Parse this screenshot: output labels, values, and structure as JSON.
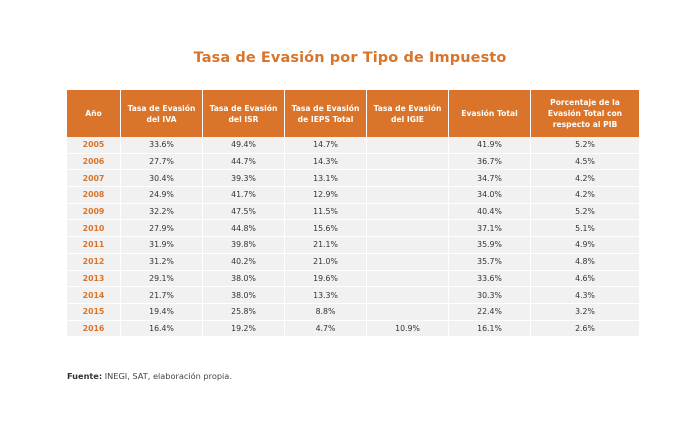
{
  "title": "Tasa de Evasión por Tipo de Impuesto",
  "table": {
    "headers": [
      "Año",
      "Tasa de Evasión del IVA",
      "Tasa de Evasión del ISR",
      "Tasa de Evasión de IEPS Total",
      "Tasa de Evasión del IGIE",
      "Evasión Total",
      "Porcentaje de la Evasión Total con respecto al PIB"
    ],
    "rows": [
      [
        "2005",
        "33.6%",
        "49.4%",
        "14.7%",
        "",
        "41.9%",
        "5.2%"
      ],
      [
        "2006",
        "27.7%",
        "44.7%",
        "14.3%",
        "",
        "36.7%",
        "4.5%"
      ],
      [
        "2007",
        "30.4%",
        "39.3%",
        "13.1%",
        "",
        "34.7%",
        "4.2%"
      ],
      [
        "2008",
        "24.9%",
        "41.7%",
        "12.9%",
        "",
        "34.0%",
        "4.2%"
      ],
      [
        "2009",
        "32.2%",
        "47.5%",
        "11.5%",
        "",
        "40.4%",
        "5.2%"
      ],
      [
        "2010",
        "27.9%",
        "44.8%",
        "15.6%",
        "",
        "37.1%",
        "5.1%"
      ],
      [
        "2011",
        "31.9%",
        "39.8%",
        "21.1%",
        "",
        "35.9%",
        "4.9%"
      ],
      [
        "2012",
        "31.2%",
        "40.2%",
        "21.0%",
        "",
        "35.7%",
        "4.8%"
      ],
      [
        "2013",
        "29.1%",
        "38.0%",
        "19.6%",
        "",
        "33.6%",
        "4.6%"
      ],
      [
        "2014",
        "21.7%",
        "38.0%",
        "13.3%",
        "",
        "30.3%",
        "4.3%"
      ],
      [
        "2015",
        "19.4%",
        "25.8%",
        "8.8%",
        "",
        "22.4%",
        "3.2%"
      ],
      [
        "2016",
        "16.4%",
        "19.2%",
        "4.7%",
        "10.9%",
        "16.1%",
        "2.6%"
      ]
    ]
  },
  "source": {
    "label": "Fuente:",
    "text": " INEGI, SAT, elaboración propia."
  },
  "colors": {
    "accent": "#d9742a",
    "row_bg": "#f1f1f1"
  }
}
